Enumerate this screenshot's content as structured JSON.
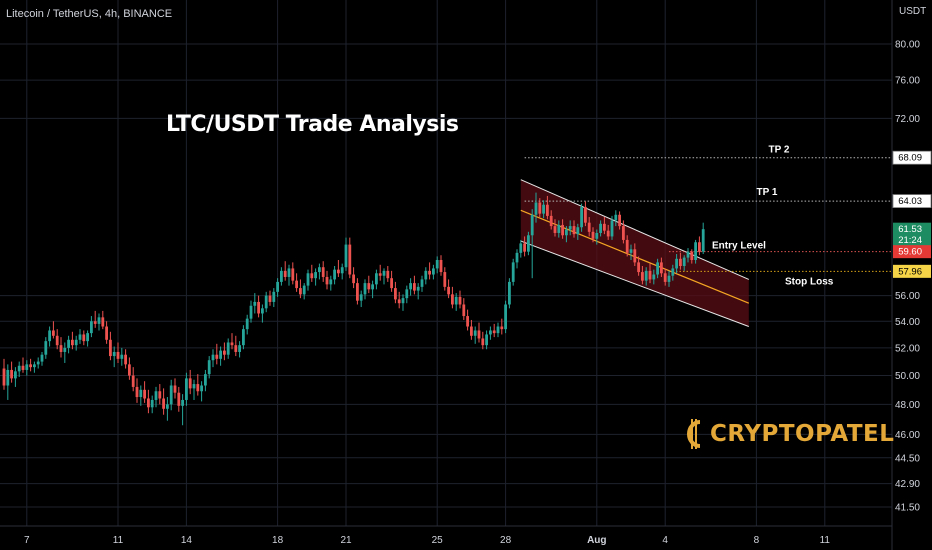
{
  "header": {
    "symbol_line": "Litecoin / TetherUS, 4h, BINANCE",
    "currency": "USDT"
  },
  "title": "LTC/USDT Trade Analysis",
  "logo": {
    "text": "CRYPTOPATEL",
    "color": "#e3a838"
  },
  "colors": {
    "up": "#26a69a",
    "down": "#ef5350",
    "channel_fill": "#5a0f16",
    "midline": "#f5a623",
    "grid": "#1e222d"
  },
  "chart_data": {
    "type": "candlestick",
    "y_axis": {
      "scale": "log",
      "ticks": [
        80.0,
        76.0,
        72.0,
        56.0,
        54.0,
        52.0,
        50.0,
        48.0,
        46.0,
        44.5,
        42.9,
        41.5
      ],
      "tick_labels": [
        "80.00",
        "76.00",
        "72.00",
        "56.00",
        "54.00",
        "52.00",
        "50.00",
        "48.00",
        "46.00",
        "44.50",
        "42.90",
        "41.50"
      ]
    },
    "x_axis": {
      "tick_labels": [
        {
          "label": "7",
          "index": 6
        },
        {
          "label": "11",
          "index": 30
        },
        {
          "label": "14",
          "index": 48
        },
        {
          "label": "18",
          "index": 72
        },
        {
          "label": "21",
          "index": 90
        },
        {
          "label": "25",
          "index": 114
        },
        {
          "label": "28",
          "index": 132
        },
        {
          "label": "Aug",
          "index": 156,
          "bold": true
        },
        {
          "label": "4",
          "index": 174
        },
        {
          "label": "8",
          "index": 198
        },
        {
          "label": "11",
          "index": 216
        }
      ]
    },
    "price_labels": [
      {
        "value": 68.09,
        "label": "68.09",
        "style": "white"
      },
      {
        "value": 64.03,
        "label": "64.03",
        "style": "white"
      },
      {
        "value": 61.53,
        "label": "61.53",
        "sublabel": "21:24",
        "style": "green"
      },
      {
        "value": 59.6,
        "label": "59.60",
        "style": "red"
      },
      {
        "value": 57.96,
        "label": "57.96",
        "style": "yellow"
      }
    ],
    "levels": [
      {
        "name": "TP 2",
        "value": 68.09,
        "start_index": 137,
        "color": "#b8b8b8"
      },
      {
        "name": "TP 1",
        "value": 64.03,
        "start_index": 137,
        "color": "#b8b8b8"
      },
      {
        "name": "Entry Level",
        "value": 59.6,
        "start_index": 175,
        "color": "#d9534f"
      },
      {
        "name": "Stop Loss",
        "value": 57.96,
        "start_index": 175,
        "color": "#d4a017"
      }
    ],
    "channel": {
      "start_index": 136,
      "end_index": 196,
      "upper_start": 66.0,
      "upper_end": 57.3,
      "lower_start": 60.5,
      "lower_end": 53.6,
      "mid_start": 63.2,
      "mid_end": 55.4
    },
    "candles": [
      [
        50.5,
        51.2,
        49.0,
        49.3
      ],
      [
        49.3,
        50.8,
        48.3,
        50.4
      ],
      [
        50.4,
        51.0,
        49.5,
        49.8
      ],
      [
        49.8,
        50.6,
        49.2,
        50.3
      ],
      [
        50.3,
        51.0,
        49.9,
        50.7
      ],
      [
        50.7,
        51.3,
        50.2,
        50.4
      ],
      [
        50.4,
        51.1,
        50.0,
        50.8
      ],
      [
        50.8,
        51.2,
        50.3,
        50.6
      ],
      [
        50.6,
        51.0,
        50.2,
        50.8
      ],
      [
        50.8,
        51.3,
        50.5,
        51.0
      ],
      [
        51.0,
        51.7,
        50.7,
        51.5
      ],
      [
        51.5,
        52.8,
        51.2,
        52.5
      ],
      [
        52.5,
        53.6,
        52.1,
        53.3
      ],
      [
        53.3,
        54.0,
        52.7,
        52.9
      ],
      [
        52.9,
        53.4,
        51.9,
        52.2
      ],
      [
        52.2,
        52.8,
        51.3,
        51.7
      ],
      [
        51.7,
        52.4,
        50.9,
        52.0
      ],
      [
        52.0,
        52.9,
        51.6,
        52.6
      ],
      [
        52.6,
        53.2,
        51.9,
        52.2
      ],
      [
        52.2,
        52.9,
        51.8,
        52.6
      ],
      [
        52.6,
        53.4,
        52.3,
        53.0
      ],
      [
        53.0,
        53.3,
        52.2,
        52.5
      ],
      [
        52.5,
        53.3,
        52.1,
        53.1
      ],
      [
        53.1,
        54.4,
        52.8,
        54.0
      ],
      [
        54.0,
        54.8,
        53.5,
        53.8
      ],
      [
        53.8,
        54.6,
        53.3,
        54.3
      ],
      [
        54.3,
        54.8,
        53.4,
        53.6
      ],
      [
        53.6,
        54.0,
        52.3,
        52.6
      ],
      [
        52.6,
        53.2,
        51.1,
        51.4
      ],
      [
        51.4,
        52.1,
        50.6,
        51.7
      ],
      [
        51.7,
        52.4,
        50.9,
        51.2
      ],
      [
        51.2,
        52.0,
        50.7,
        51.5
      ],
      [
        51.5,
        51.9,
        50.5,
        50.8
      ],
      [
        50.8,
        51.3,
        49.7,
        50.0
      ],
      [
        50.0,
        50.6,
        48.9,
        49.2
      ],
      [
        49.2,
        49.8,
        48.1,
        48.5
      ],
      [
        48.5,
        49.3,
        47.9,
        49.0
      ],
      [
        49.0,
        49.6,
        48.1,
        48.4
      ],
      [
        48.4,
        49.0,
        47.4,
        47.8
      ],
      [
        47.8,
        48.6,
        47.4,
        48.3
      ],
      [
        48.3,
        49.2,
        47.8,
        48.9
      ],
      [
        48.9,
        49.4,
        48.0,
        48.4
      ],
      [
        48.4,
        49.1,
        47.3,
        47.7
      ],
      [
        47.7,
        48.5,
        46.9,
        48.0
      ],
      [
        48.0,
        49.7,
        47.6,
        49.3
      ],
      [
        49.3,
        49.8,
        48.4,
        48.8
      ],
      [
        48.8,
        49.2,
        47.5,
        47.9
      ],
      [
        47.9,
        48.7,
        46.6,
        48.3
      ],
      [
        48.3,
        50.2,
        47.9,
        49.8
      ],
      [
        49.8,
        50.4,
        48.7,
        49.1
      ],
      [
        49.1,
        49.7,
        48.3,
        49.4
      ],
      [
        49.4,
        50.1,
        48.6,
        48.9
      ],
      [
        48.9,
        49.6,
        48.2,
        49.3
      ],
      [
        49.3,
        50.4,
        48.9,
        50.1
      ],
      [
        50.1,
        51.4,
        49.8,
        51.1
      ],
      [
        51.1,
        51.9,
        50.6,
        51.5
      ],
      [
        51.5,
        52.3,
        50.8,
        51.2
      ],
      [
        51.2,
        52.1,
        50.7,
        51.8
      ],
      [
        51.8,
        52.4,
        51.1,
        51.5
      ],
      [
        51.5,
        52.7,
        51.2,
        52.4
      ],
      [
        52.4,
        53.1,
        51.9,
        52.2
      ],
      [
        52.2,
        52.9,
        51.4,
        51.7
      ],
      [
        51.7,
        52.5,
        51.3,
        52.2
      ],
      [
        52.2,
        53.7,
        51.9,
        53.4
      ],
      [
        53.4,
        54.5,
        53.0,
        54.2
      ],
      [
        54.2,
        55.6,
        53.9,
        55.2
      ],
      [
        55.2,
        56.2,
        54.6,
        55.5
      ],
      [
        55.5,
        56.0,
        54.3,
        54.6
      ],
      [
        54.6,
        55.3,
        53.9,
        55.0
      ],
      [
        55.0,
        56.3,
        54.7,
        56.0
      ],
      [
        56.0,
        56.4,
        55.2,
        55.5
      ],
      [
        55.5,
        56.6,
        55.1,
        56.3
      ],
      [
        56.3,
        57.4,
        55.9,
        57.1
      ],
      [
        57.1,
        58.3,
        56.8,
        58.0
      ],
      [
        58.0,
        58.8,
        57.2,
        57.5
      ],
      [
        57.5,
        58.5,
        56.8,
        58.2
      ],
      [
        58.2,
        58.7,
        56.9,
        57.2
      ],
      [
        57.2,
        57.8,
        56.3,
        56.6
      ],
      [
        56.6,
        57.3,
        55.8,
        56.1
      ],
      [
        56.1,
        57.0,
        55.7,
        56.8
      ],
      [
        56.8,
        58.1,
        56.4,
        57.8
      ],
      [
        57.8,
        58.5,
        57.1,
        57.4
      ],
      [
        57.4,
        58.2,
        56.8,
        57.9
      ],
      [
        57.9,
        58.6,
        57.3,
        58.3
      ],
      [
        58.3,
        58.8,
        57.1,
        57.5
      ],
      [
        57.5,
        58.0,
        56.5,
        56.9
      ],
      [
        56.9,
        57.6,
        56.4,
        57.3
      ],
      [
        57.3,
        58.4,
        56.9,
        58.1
      ],
      [
        58.1,
        58.9,
        57.5,
        57.8
      ],
      [
        57.8,
        58.6,
        57.3,
        58.3
      ],
      [
        58.3,
        60.8,
        58.0,
        60.2
      ],
      [
        60.2,
        60.8,
        57.4,
        57.7
      ],
      [
        57.7,
        58.3,
        56.6,
        57.0
      ],
      [
        57.0,
        57.4,
        55.3,
        55.6
      ],
      [
        55.6,
        56.4,
        55.1,
        56.1
      ],
      [
        56.1,
        57.3,
        55.7,
        57.0
      ],
      [
        57.0,
        57.6,
        56.2,
        56.5
      ],
      [
        56.5,
        57.2,
        55.8,
        56.9
      ],
      [
        56.9,
        58.1,
        56.5,
        57.8
      ],
      [
        57.8,
        58.5,
        57.2,
        57.6
      ],
      [
        57.6,
        58.2,
        56.9,
        58.0
      ],
      [
        58.0,
        58.4,
        57.1,
        57.4
      ],
      [
        57.4,
        58.0,
        56.3,
        56.6
      ],
      [
        56.6,
        57.1,
        55.4,
        55.7
      ],
      [
        55.7,
        56.3,
        55.0,
        55.4
      ],
      [
        55.4,
        56.1,
        54.8,
        55.8
      ],
      [
        55.8,
        56.8,
        55.4,
        56.5
      ],
      [
        56.5,
        57.4,
        56.0,
        57.0
      ],
      [
        57.0,
        57.6,
        56.1,
        56.4
      ],
      [
        56.4,
        57.0,
        55.7,
        56.7
      ],
      [
        56.7,
        57.6,
        56.3,
        57.3
      ],
      [
        57.3,
        58.3,
        56.9,
        58.0
      ],
      [
        58.0,
        58.7,
        57.3,
        57.7
      ],
      [
        57.7,
        58.5,
        57.3,
        58.2
      ],
      [
        58.2,
        59.2,
        57.8,
        58.9
      ],
      [
        58.9,
        59.3,
        57.6,
        57.9
      ],
      [
        57.9,
        58.3,
        56.4,
        56.7
      ],
      [
        56.7,
        57.3,
        55.8,
        56.1
      ],
      [
        56.1,
        56.7,
        55.0,
        55.3
      ],
      [
        55.3,
        56.2,
        54.8,
        55.9
      ],
      [
        55.9,
        56.4,
        55.0,
        55.3
      ],
      [
        55.3,
        55.8,
        54.1,
        54.4
      ],
      [
        54.4,
        54.9,
        53.3,
        53.6
      ],
      [
        53.6,
        54.1,
        52.6,
        52.9
      ],
      [
        52.9,
        53.6,
        52.3,
        53.3
      ],
      [
        53.3,
        53.9,
        52.4,
        52.7
      ],
      [
        52.7,
        53.2,
        51.9,
        52.2
      ],
      [
        52.2,
        53.3,
        51.9,
        53.0
      ],
      [
        53.0,
        53.6,
        52.6,
        53.3
      ],
      [
        53.3,
        53.8,
        52.8,
        53.1
      ],
      [
        53.1,
        53.9,
        52.8,
        53.6
      ],
      [
        53.6,
        54.2,
        53.0,
        53.4
      ],
      [
        53.4,
        55.6,
        53.1,
        55.3
      ],
      [
        55.3,
        57.4,
        55.0,
        57.1
      ],
      [
        57.1,
        59.0,
        56.8,
        58.7
      ],
      [
        58.7,
        59.8,
        58.2,
        59.5
      ],
      [
        59.5,
        60.6,
        59.1,
        60.3
      ],
      [
        60.3,
        60.9,
        59.2,
        59.6
      ],
      [
        59.6,
        61.3,
        59.3,
        61.0
      ],
      [
        61.0,
        63.3,
        57.4,
        62.8
      ],
      [
        62.8,
        64.8,
        62.1,
        63.9
      ],
      [
        63.9,
        64.3,
        62.6,
        62.9
      ],
      [
        62.9,
        64.1,
        62.5,
        63.7
      ],
      [
        63.7,
        64.5,
        62.4,
        62.7
      ],
      [
        62.7,
        63.2,
        61.5,
        61.8
      ],
      [
        61.8,
        62.4,
        60.9,
        61.2
      ],
      [
        61.2,
        62.3,
        60.8,
        61.9
      ],
      [
        61.9,
        62.4,
        60.7,
        61.0
      ],
      [
        61.0,
        61.8,
        60.4,
        61.5
      ],
      [
        61.5,
        62.3,
        61.0,
        61.8
      ],
      [
        61.8,
        62.3,
        60.8,
        61.1
      ],
      [
        61.1,
        62.0,
        60.6,
        61.7
      ],
      [
        61.7,
        63.8,
        61.3,
        63.5
      ],
      [
        63.5,
        64.0,
        61.8,
        62.1
      ],
      [
        62.1,
        62.6,
        60.9,
        61.3
      ],
      [
        61.3,
        61.7,
        60.4,
        60.7
      ],
      [
        60.7,
        61.5,
        60.2,
        61.2
      ],
      [
        61.2,
        62.3,
        60.9,
        62.0
      ],
      [
        62.0,
        62.6,
        61.1,
        61.4
      ],
      [
        61.4,
        61.9,
        60.6,
        60.9
      ],
      [
        60.9,
        62.7,
        60.6,
        62.3
      ],
      [
        62.3,
        63.2,
        61.8,
        62.8
      ],
      [
        62.8,
        63.1,
        61.5,
        61.8
      ],
      [
        61.8,
        62.3,
        60.3,
        60.6
      ],
      [
        60.6,
        61.0,
        59.2,
        59.5
      ],
      [
        59.5,
        60.2,
        58.9,
        59.8
      ],
      [
        59.8,
        60.3,
        58.4,
        58.7
      ],
      [
        58.7,
        59.2,
        57.6,
        57.9
      ],
      [
        57.9,
        58.4,
        56.9,
        57.2
      ],
      [
        57.2,
        58.3,
        56.8,
        58.0
      ],
      [
        58.0,
        58.6,
        57.0,
        57.3
      ],
      [
        57.3,
        58.1,
        56.9,
        57.7
      ],
      [
        57.7,
        59.0,
        57.4,
        58.7
      ],
      [
        58.7,
        59.1,
        57.5,
        57.8
      ],
      [
        57.8,
        58.2,
        56.8,
        57.1
      ],
      [
        57.1,
        58.0,
        56.7,
        57.6
      ],
      [
        57.6,
        58.5,
        57.2,
        58.2
      ],
      [
        58.2,
        59.4,
        57.8,
        59.0
      ],
      [
        59.0,
        59.5,
        58.1,
        58.4
      ],
      [
        58.4,
        59.3,
        58.0,
        59.1
      ],
      [
        59.1,
        59.9,
        58.7,
        59.6
      ],
      [
        59.6,
        59.8,
        58.6,
        58.9
      ],
      [
        58.9,
        60.6,
        58.6,
        60.4
      ],
      [
        60.4,
        60.9,
        59.3,
        59.6
      ],
      [
        59.6,
        62.1,
        59.4,
        61.53
      ]
    ]
  },
  "annotation_labels": {
    "tp2": "TP 2",
    "tp1": "TP 1",
    "entry": "Entry Level",
    "stop": "Stop Loss"
  }
}
